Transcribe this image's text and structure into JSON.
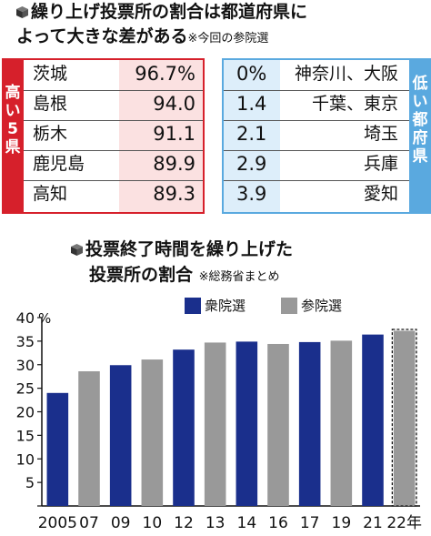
{
  "top_section": {
    "title_line1": "繰り上げ投票所の割合は都道府県に",
    "title_line2": "よって大きな差がある",
    "note": "※今回の参院選",
    "high_label": "高い5県",
    "low_label": "低い都府県",
    "high_rows": [
      {
        "name": "茨城",
        "value": "96.7%"
      },
      {
        "name": "島根",
        "value": "94.0"
      },
      {
        "name": "栃木",
        "value": "91.1"
      },
      {
        "name": "鹿児島",
        "value": "89.9"
      },
      {
        "name": "高知",
        "value": "89.3"
      }
    ],
    "low_rows": [
      {
        "value": "0%",
        "name": "神奈川、大阪"
      },
      {
        "value": "1.4",
        "name": "千葉、東京"
      },
      {
        "value": "2.1",
        "name": "埼玉"
      },
      {
        "value": "2.9",
        "name": "兵庫"
      },
      {
        "value": "3.9",
        "name": "愛知"
      }
    ],
    "colors": {
      "high": "#d6202b",
      "high_bg": "#fbe1e1",
      "low": "#5aa9df",
      "low_bg": "#ddeefa"
    }
  },
  "chart_section": {
    "title_line1": "投票終了時間を繰り上げた",
    "title_line2": "投票所の割合",
    "note": "※総務省まとめ",
    "unit": "%"
  },
  "chart_data": {
    "type": "bar",
    "categories": [
      "2005",
      "07",
      "09",
      "10",
      "12",
      "13",
      "14",
      "16",
      "17",
      "19",
      "21",
      "22年"
    ],
    "values": [
      24.0,
      28.6,
      29.9,
      31.1,
      33.2,
      34.7,
      34.9,
      34.4,
      34.8,
      35.1,
      36.4,
      37.2
    ],
    "bar_series": [
      "shugiin",
      "sangiin",
      "shugiin",
      "sangiin",
      "shugiin",
      "sangiin",
      "shugiin",
      "sangiin",
      "shugiin",
      "sangiin",
      "shugiin",
      "sangiin"
    ],
    "highlight_last": true,
    "series": [
      {
        "key": "shugiin",
        "name": "衆院選",
        "color": "#1a2f8c"
      },
      {
        "key": "sangiin",
        "name": "参院選",
        "color": "#999999"
      }
    ],
    "ylim": [
      0,
      40
    ],
    "yticks": [
      0,
      5,
      10,
      15,
      20,
      25,
      30,
      35,
      40
    ],
    "grid": false,
    "legend_position": "top-right"
  }
}
